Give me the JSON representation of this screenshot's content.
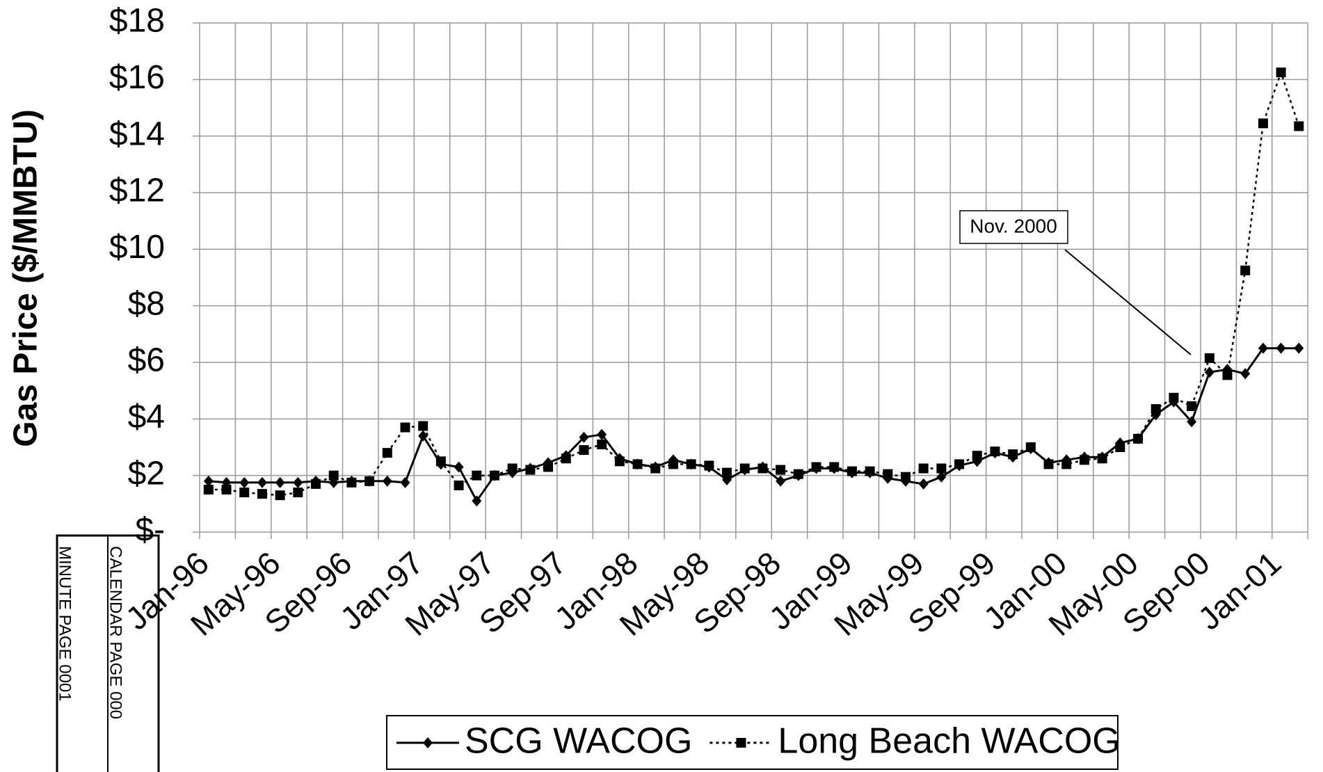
{
  "chart_data": {
    "type": "line",
    "y_label": "Gas Price ($/MMBTU)",
    "categories": [
      "Jan-96",
      null,
      null,
      null,
      "May-96",
      null,
      null,
      null,
      "Sep-96",
      null,
      null,
      null,
      "Jan-97",
      null,
      null,
      null,
      "May-97",
      null,
      null,
      null,
      "Sep-97",
      null,
      null,
      null,
      "Jan-98",
      null,
      null,
      null,
      "May-98",
      null,
      null,
      null,
      "Sep-98",
      null,
      null,
      null,
      "Jan-99",
      null,
      null,
      null,
      "May-99",
      null,
      null,
      null,
      "Sep-99",
      null,
      null,
      null,
      "Jan-00",
      null,
      null,
      null,
      "May-00",
      null,
      null,
      null,
      "Sep-00",
      null,
      null,
      null,
      "Jan-01",
      null
    ],
    "series": [
      {
        "name": "SCG WACOG",
        "color": "#000000",
        "marker": "diamond",
        "dash": "solid",
        "values": [
          1.8,
          1.75,
          1.75,
          1.75,
          1.75,
          1.75,
          1.8,
          1.75,
          1.8,
          1.8,
          1.8,
          1.75,
          3.4,
          2.4,
          2.3,
          1.1,
          2.0,
          2.1,
          2.25,
          2.45,
          2.7,
          3.35,
          3.45,
          2.6,
          2.4,
          2.3,
          2.55,
          2.4,
          2.3,
          1.85,
          2.2,
          2.3,
          1.8,
          2.0,
          2.25,
          2.25,
          2.1,
          2.1,
          1.9,
          1.8,
          1.7,
          1.95,
          2.35,
          2.5,
          2.8,
          2.65,
          2.95,
          2.45,
          2.55,
          2.65,
          2.65,
          3.15,
          3.3,
          4.15,
          4.6,
          3.9,
          5.65,
          5.75,
          5.6,
          6.5,
          6.5,
          6.5
        ]
      },
      {
        "name": "Long Beach WACOG",
        "color": "#000000",
        "marker": "square",
        "dash": "dotted",
        "values": [
          1.5,
          1.5,
          1.4,
          1.35,
          1.3,
          1.4,
          1.7,
          2.0,
          1.75,
          1.8,
          2.8,
          3.7,
          3.75,
          2.5,
          1.65,
          2.0,
          2.0,
          2.25,
          2.2,
          2.3,
          2.6,
          2.9,
          3.1,
          2.5,
          2.4,
          2.25,
          2.4,
          2.4,
          2.35,
          2.1,
          2.25,
          2.25,
          2.2,
          2.05,
          2.3,
          2.3,
          2.15,
          2.15,
          2.05,
          1.95,
          2.25,
          2.25,
          2.4,
          2.7,
          2.85,
          2.75,
          3.0,
          2.4,
          2.4,
          2.55,
          2.6,
          3.0,
          3.3,
          4.35,
          4.75,
          4.45,
          6.15,
          5.55,
          9.25,
          14.45,
          16.25,
          14.35
        ]
      }
    ],
    "ylim": [
      0,
      18
    ],
    "yticks": [
      {
        "value": 0,
        "label": "$-"
      },
      {
        "value": 2,
        "label": "$2"
      },
      {
        "value": 4,
        "label": "$4"
      },
      {
        "value": 6,
        "label": "$6"
      },
      {
        "value": 8,
        "label": "$8"
      },
      {
        "value": 10,
        "label": "$10"
      },
      {
        "value": 12,
        "label": "$12"
      },
      {
        "value": 14,
        "label": "$14"
      },
      {
        "value": 16,
        "label": "$16"
      },
      {
        "value": 18,
        "label": "$18"
      }
    ],
    "grid": true,
    "legend": "bottom",
    "annotation": "Nov. 2000"
  },
  "stamps": [
    "CALENDAR PAGE 000",
    "MINUTE PAGE 0001"
  ]
}
